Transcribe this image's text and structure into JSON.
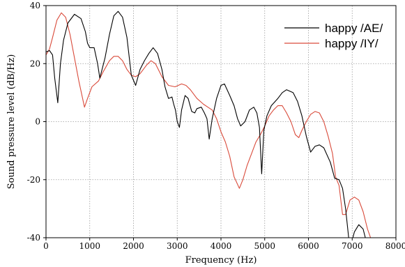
{
  "chart_data": {
    "type": "line",
    "xlabel": "Frequency (Hz)",
    "ylabel": "Sound pressure level (dB/Hz)",
    "xlim": [
      0,
      8000
    ],
    "ylim": [
      -40,
      40
    ],
    "xticks": [
      "0",
      "1000",
      "2000",
      "3000",
      "4000",
      "5000",
      "6000",
      "7000",
      "8000"
    ],
    "yticks": [
      "40",
      "20",
      "0",
      "-20",
      "-40"
    ],
    "grid": "dotted",
    "legend_position": "top-right",
    "series": [
      {
        "name": "happy /AE/",
        "color": "#000000",
        "points": [
          [
            0,
            24
          ],
          [
            80,
            24.5
          ],
          [
            150,
            23
          ],
          [
            200,
            15
          ],
          [
            270,
            6.5
          ],
          [
            330,
            20
          ],
          [
            400,
            28
          ],
          [
            500,
            34
          ],
          [
            650,
            37
          ],
          [
            800,
            35.5
          ],
          [
            900,
            31
          ],
          [
            950,
            27
          ],
          [
            1000,
            25.5
          ],
          [
            1100,
            25.5
          ],
          [
            1180,
            20
          ],
          [
            1230,
            15
          ],
          [
            1350,
            22
          ],
          [
            1450,
            30
          ],
          [
            1550,
            36.5
          ],
          [
            1650,
            38
          ],
          [
            1750,
            36
          ],
          [
            1850,
            29
          ],
          [
            1950,
            16
          ],
          [
            2050,
            12.5
          ],
          [
            2150,
            18
          ],
          [
            2250,
            21
          ],
          [
            2350,
            23.5
          ],
          [
            2450,
            25.5
          ],
          [
            2550,
            23.5
          ],
          [
            2650,
            18
          ],
          [
            2720,
            12
          ],
          [
            2800,
            8
          ],
          [
            2880,
            8.5
          ],
          [
            2920,
            6
          ],
          [
            2960,
            4
          ],
          [
            3000,
            0
          ],
          [
            3050,
            -2
          ],
          [
            3100,
            4
          ],
          [
            3180,
            9
          ],
          [
            3250,
            8
          ],
          [
            3330,
            3.5
          ],
          [
            3400,
            3
          ],
          [
            3450,
            4.5
          ],
          [
            3550,
            5
          ],
          [
            3620,
            3
          ],
          [
            3680,
            1
          ],
          [
            3730,
            -6
          ],
          [
            3800,
            1
          ],
          [
            3900,
            8
          ],
          [
            4000,
            12.5
          ],
          [
            4080,
            13
          ],
          [
            4200,
            9
          ],
          [
            4300,
            5.5
          ],
          [
            4380,
            1
          ],
          [
            4450,
            -1.5
          ],
          [
            4550,
            0
          ],
          [
            4650,
            4
          ],
          [
            4750,
            5
          ],
          [
            4820,
            3
          ],
          [
            4880,
            -2
          ],
          [
            4930,
            -18
          ],
          [
            4980,
            -3
          ],
          [
            5050,
            2
          ],
          [
            5150,
            5.5
          ],
          [
            5300,
            8
          ],
          [
            5400,
            10
          ],
          [
            5500,
            11
          ],
          [
            5650,
            10
          ],
          [
            5750,
            7
          ],
          [
            5850,
            2
          ],
          [
            5950,
            -5
          ],
          [
            6050,
            -10.5
          ],
          [
            6150,
            -8.5
          ],
          [
            6250,
            -8
          ],
          [
            6350,
            -9
          ],
          [
            6500,
            -14
          ],
          [
            6600,
            -19.5
          ],
          [
            6700,
            -20
          ],
          [
            6780,
            -23
          ],
          [
            6850,
            -30
          ],
          [
            6920,
            -40
          ],
          [
            6980,
            -42
          ],
          [
            7050,
            -38
          ],
          [
            7150,
            -35.5
          ],
          [
            7250,
            -37
          ],
          [
            7300,
            -40
          ]
        ]
      },
      {
        "name": "happy /IY/",
        "color": "#d94a3a",
        "points": [
          [
            0,
            23
          ],
          [
            80,
            25
          ],
          [
            150,
            29
          ],
          [
            250,
            35
          ],
          [
            350,
            37.5
          ],
          [
            450,
            36
          ],
          [
            550,
            30
          ],
          [
            650,
            22
          ],
          [
            750,
            14
          ],
          [
            880,
            5
          ],
          [
            950,
            8
          ],
          [
            1050,
            12
          ],
          [
            1200,
            14
          ],
          [
            1300,
            17
          ],
          [
            1450,
            21
          ],
          [
            1550,
            22.5
          ],
          [
            1650,
            22.5
          ],
          [
            1750,
            21
          ],
          [
            1850,
            18
          ],
          [
            1950,
            16
          ],
          [
            2050,
            15.5
          ],
          [
            2150,
            16.5
          ],
          [
            2300,
            19.5
          ],
          [
            2400,
            21
          ],
          [
            2500,
            20
          ],
          [
            2650,
            15.5
          ],
          [
            2800,
            12.5
          ],
          [
            2950,
            12
          ],
          [
            3100,
            13
          ],
          [
            3200,
            12.5
          ],
          [
            3300,
            11
          ],
          [
            3450,
            8
          ],
          [
            3600,
            6
          ],
          [
            3700,
            5
          ],
          [
            3800,
            4
          ],
          [
            3900,
            1
          ],
          [
            4000,
            -3.5
          ],
          [
            4100,
            -7
          ],
          [
            4200,
            -12
          ],
          [
            4300,
            -19
          ],
          [
            4420,
            -23
          ],
          [
            4500,
            -20
          ],
          [
            4600,
            -15
          ],
          [
            4700,
            -11
          ],
          [
            4800,
            -7
          ],
          [
            4900,
            -4.5
          ],
          [
            5000,
            -1.5
          ],
          [
            5100,
            2
          ],
          [
            5200,
            4
          ],
          [
            5300,
            5.5
          ],
          [
            5400,
            5.5
          ],
          [
            5500,
            3
          ],
          [
            5600,
            0
          ],
          [
            5700,
            -4.5
          ],
          [
            5780,
            -5.5
          ],
          [
            5850,
            -3
          ],
          [
            5950,
            0
          ],
          [
            6050,
            2.5
          ],
          [
            6150,
            3.5
          ],
          [
            6250,
            3
          ],
          [
            6350,
            0
          ],
          [
            6450,
            -5
          ],
          [
            6550,
            -11
          ],
          [
            6620,
            -19
          ],
          [
            6700,
            -22
          ],
          [
            6780,
            -32
          ],
          [
            6850,
            -32
          ],
          [
            6950,
            -27
          ],
          [
            7050,
            -26
          ],
          [
            7150,
            -27
          ],
          [
            7250,
            -31
          ],
          [
            7350,
            -37
          ],
          [
            7420,
            -40
          ]
        ]
      }
    ]
  }
}
